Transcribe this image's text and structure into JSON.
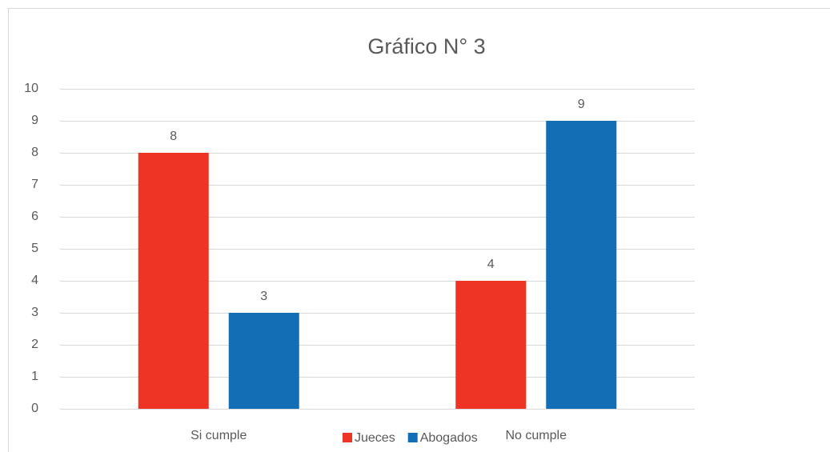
{
  "chart_data": {
    "type": "bar",
    "title": "Gráfico N° 3",
    "categories": [
      "Si cumple",
      "No cumple"
    ],
    "series": [
      {
        "name": "Jueces",
        "color": "#ee3424",
        "values": [
          8,
          4
        ]
      },
      {
        "name": "Abogados",
        "color": "#136eb5",
        "values": [
          3,
          9
        ]
      }
    ],
    "ylim": [
      0,
      10
    ],
    "yticks": [
      0,
      1,
      2,
      3,
      4,
      5,
      6,
      7,
      8,
      9,
      10
    ],
    "grid": true,
    "legend": "bottom"
  }
}
